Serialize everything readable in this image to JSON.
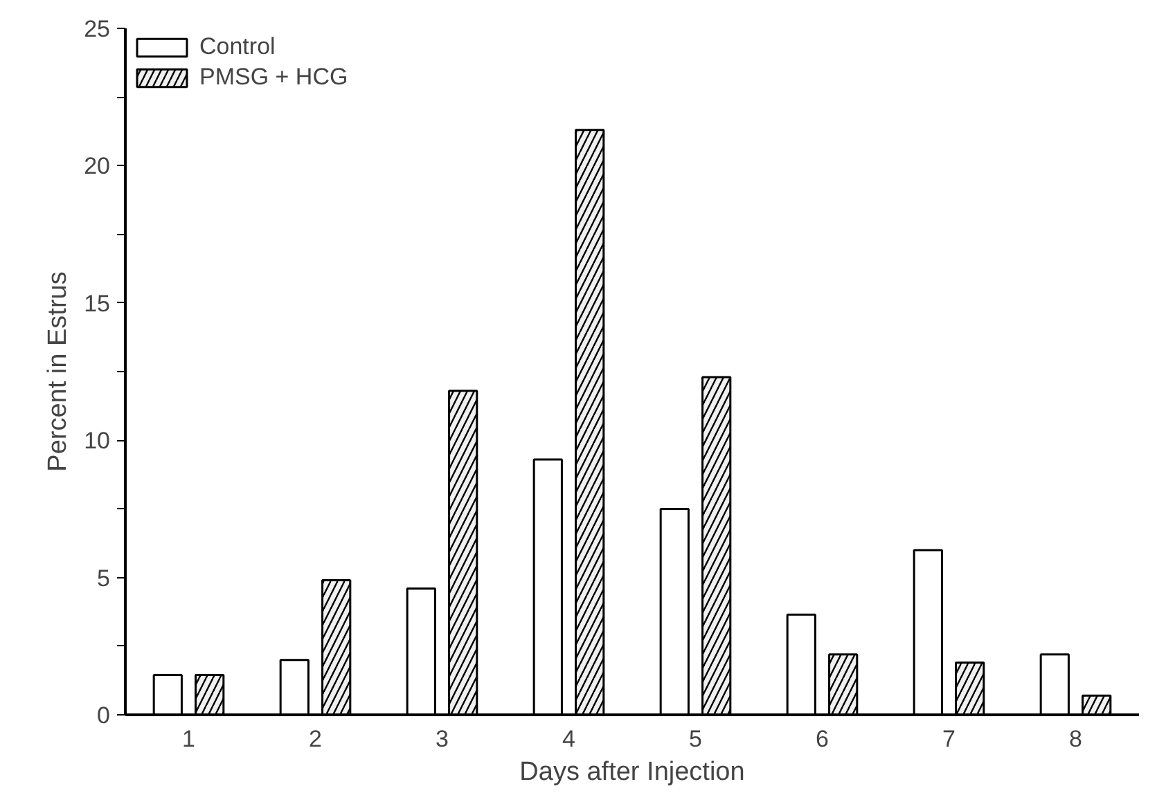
{
  "chart_data": {
    "type": "bar",
    "xlabel": "Days after Injection",
    "ylabel": "Percent in Estrus",
    "categories": [
      "1",
      "2",
      "3",
      "4",
      "5",
      "6",
      "7",
      "8"
    ],
    "series": [
      {
        "name": "Control",
        "color": "#ffffff",
        "values": [
          1.45,
          2.0,
          4.6,
          9.3,
          7.5,
          3.65,
          6.0,
          2.2
        ]
      },
      {
        "name": "PMSG + HCG",
        "color": "#000000",
        "values": [
          1.45,
          4.9,
          11.8,
          21.3,
          12.3,
          2.2,
          1.9,
          0.7
        ]
      }
    ],
    "ylim": [
      0,
      25
    ],
    "yticks": [
      0,
      {
        "value": 2.5,
        "label": null
      },
      5,
      {
        "value": 7.5,
        "label": null
      },
      10,
      {
        "value": 12.5,
        "label": null
      },
      15,
      {
        "value": 17.5,
        "label": null
      },
      20,
      {
        "value": 22.5,
        "label": null
      },
      25
    ],
    "grid": false,
    "legend": "top left"
  }
}
